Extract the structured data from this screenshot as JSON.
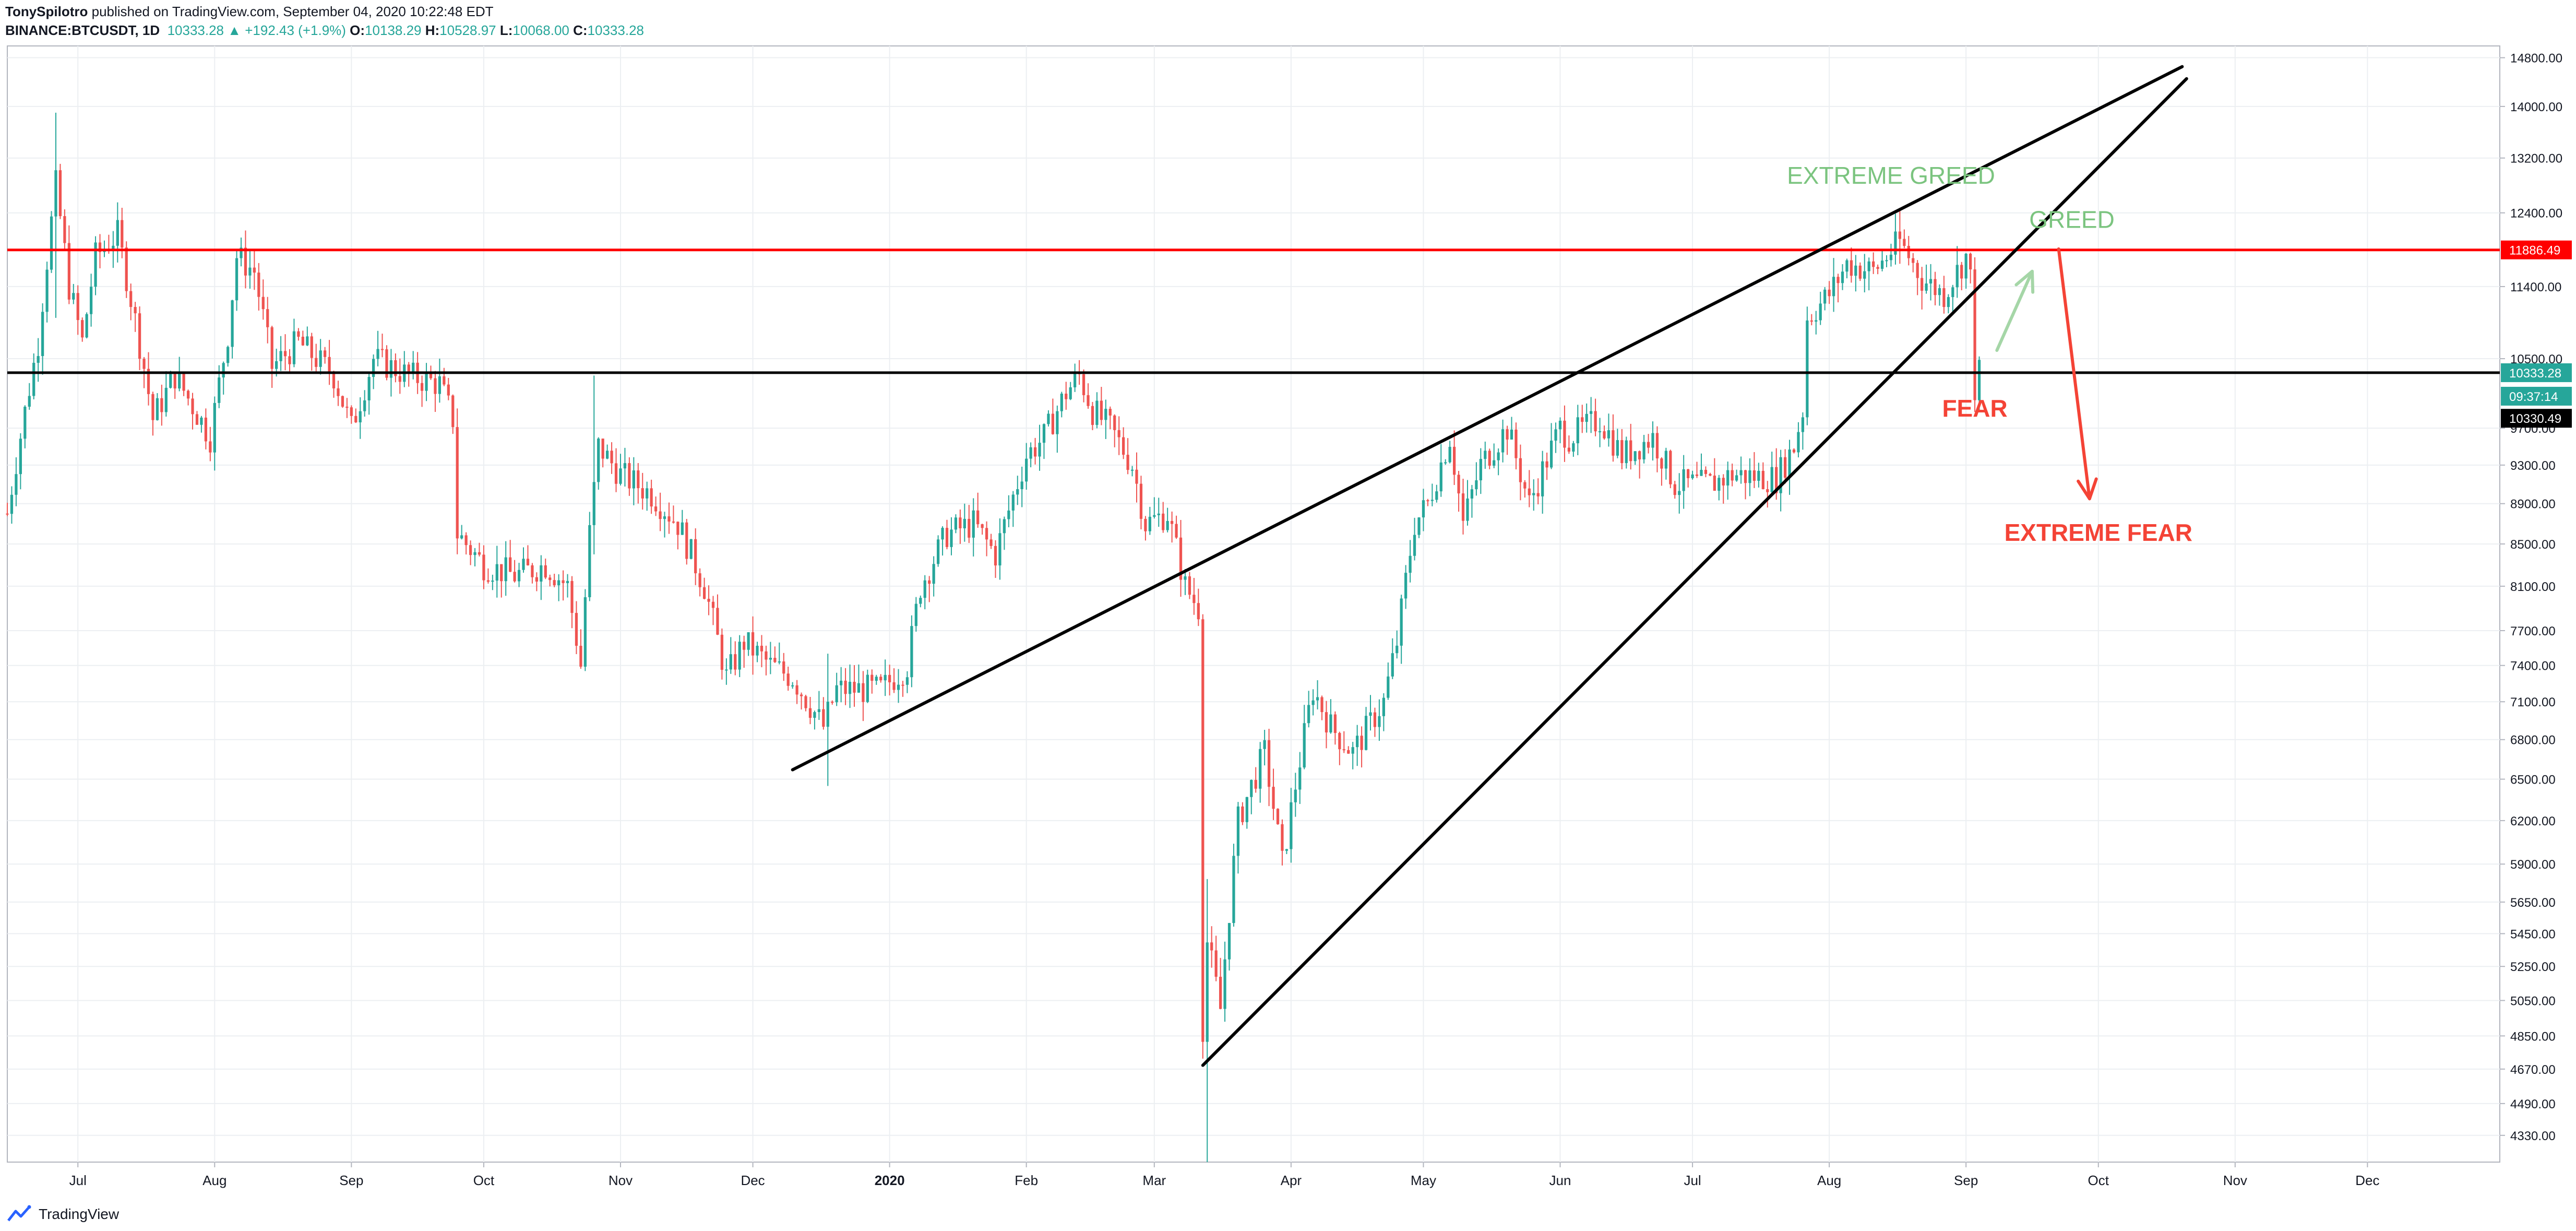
{
  "header": {
    "author": "TonySpilotro",
    "published_text": "published on TradingView.com, September 04, 2020 10:22:48 EDT",
    "symbol": "BINANCE:BTCUSDT, 1D",
    "last": "10333.28",
    "change": "+192.43 (+1.9%)",
    "o_label": "O:",
    "o_value": "10138.29",
    "h_label": "H:",
    "h_value": "10528.97",
    "l_label": "L:",
    "l_value": "10068.00",
    "c_label": "C:",
    "c_value": "10333.28"
  },
  "footer": {
    "brand": "TradingView",
    "logo_icon": "tradingview-logo-icon"
  },
  "colors": {
    "up": "#26a69a",
    "down": "#ef5350",
    "resistance": "#ff0000",
    "support": "#000000",
    "greed": "#7bc47f",
    "fear": "#f44336",
    "grid": "#eceff2"
  },
  "chart_data": {
    "type": "candlestick",
    "y_scale": "log",
    "y_range": [
      4200,
      15000
    ],
    "x_range": [
      "2020-06-15",
      "2021-01-01"
    ],
    "x_range_note": "date axis spans 2019-06-15 to 2020-12-31",
    "x_start": "2019-06-15",
    "x_end": "2020-12-31",
    "y_ticks": [
      "14800.00",
      "14000.00",
      "13200.00",
      "12400.00",
      "11400.00",
      "10500.00",
      "9700.00",
      "9300.00",
      "8900.00",
      "8500.00",
      "8100.00",
      "7700.00",
      "7400.00",
      "7100.00",
      "6800.00",
      "6500.00",
      "6200.00",
      "5900.00",
      "5650.00",
      "5450.00",
      "5250.00",
      "5050.00",
      "4850.00",
      "4670.00",
      "4490.00",
      "4330.00"
    ],
    "x_ticks": [
      {
        "label": "Jul",
        "date": "2019-07-01"
      },
      {
        "label": "Aug",
        "date": "2019-08-01"
      },
      {
        "label": "Sep",
        "date": "2019-09-01"
      },
      {
        "label": "Oct",
        "date": "2019-10-01"
      },
      {
        "label": "Nov",
        "date": "2019-11-01"
      },
      {
        "label": "Dec",
        "date": "2019-12-01"
      },
      {
        "label": "2020",
        "date": "2020-01-01",
        "bold": true
      },
      {
        "label": "Feb",
        "date": "2020-02-01"
      },
      {
        "label": "Mar",
        "date": "2020-03-01"
      },
      {
        "label": "Apr",
        "date": "2020-04-01"
      },
      {
        "label": "May",
        "date": "2020-05-01"
      },
      {
        "label": "Jun",
        "date": "2020-06-01"
      },
      {
        "label": "Jul",
        "date": "2020-07-01"
      },
      {
        "label": "Aug",
        "date": "2020-08-01"
      },
      {
        "label": "Sep",
        "date": "2020-09-01"
      },
      {
        "label": "Oct",
        "date": "2020-10-01"
      },
      {
        "label": "Nov",
        "date": "2020-11-01"
      },
      {
        "label": "Dec",
        "date": "2020-12-01"
      }
    ],
    "price_path": [
      [
        "2019-06-15",
        8800
      ],
      [
        "2019-06-22",
        10700
      ],
      [
        "2019-06-26",
        12800
      ],
      [
        "2019-06-29",
        11400
      ],
      [
        "2019-07-02",
        10700
      ],
      [
        "2019-07-05",
        11800
      ],
      [
        "2019-07-10",
        12100
      ],
      [
        "2019-07-16",
        10400
      ],
      [
        "2019-07-18",
        9800
      ],
      [
        "2019-07-23",
        10300
      ],
      [
        "2019-07-31",
        9600
      ],
      [
        "2019-08-04",
        10800
      ],
      [
        "2019-08-06",
        11800
      ],
      [
        "2019-08-10",
        11600
      ],
      [
        "2019-08-14",
        10400
      ],
      [
        "2019-08-20",
        10700
      ],
      [
        "2019-08-28",
        10300
      ],
      [
        "2019-09-01",
        9700
      ],
      [
        "2019-09-06",
        10500
      ],
      [
        "2019-09-14",
        10300
      ],
      [
        "2019-09-21",
        10200
      ],
      [
        "2019-09-24",
        9800
      ],
      [
        "2019-09-25",
        8600
      ],
      [
        "2019-10-01",
        8300
      ],
      [
        "2019-10-08",
        8200
      ],
      [
        "2019-10-15",
        8300
      ],
      [
        "2019-10-20",
        8100
      ],
      [
        "2019-10-23",
        7400
      ],
      [
        "2019-10-25",
        8600
      ],
      [
        "2019-10-27",
        9500
      ],
      [
        "2019-11-01",
        9200
      ],
      [
        "2019-11-08",
        9000
      ],
      [
        "2019-11-14",
        8700
      ],
      [
        "2019-11-20",
        8100
      ],
      [
        "2019-11-25",
        7300
      ],
      [
        "2019-11-29",
        7600
      ],
      [
        "2019-12-05",
        7400
      ],
      [
        "2019-12-10",
        7300
      ],
      [
        "2019-12-17",
        6900
      ],
      [
        "2019-12-20",
        7200
      ],
      [
        "2019-12-30",
        7200
      ],
      [
        "2020-01-05",
        7400
      ],
      [
        "2020-01-08",
        8100
      ],
      [
        "2020-01-14",
        8600
      ],
      [
        "2020-01-20",
        8700
      ],
      [
        "2020-01-25",
        8400
      ],
      [
        "2020-02-01",
        9400
      ],
      [
        "2020-02-05",
        9600
      ],
      [
        "2020-02-10",
        10100
      ],
      [
        "2020-02-13",
        10300
      ],
      [
        "2020-02-16",
        9900
      ],
      [
        "2020-02-20",
        9700
      ],
      [
        "2020-02-25",
        9300
      ],
      [
        "2020-02-28",
        8700
      ],
      [
        "2020-03-04",
        8800
      ],
      [
        "2020-03-08",
        8100
      ],
      [
        "2020-03-11",
        7900
      ],
      [
        "2020-03-12",
        4900
      ],
      [
        "2020-03-13",
        5400
      ],
      [
        "2020-03-16",
        5000
      ],
      [
        "2020-03-20",
        6200
      ],
      [
        "2020-03-26",
        6700
      ],
      [
        "2020-03-30",
        5900
      ],
      [
        "2020-04-06",
        7200
      ],
      [
        "2020-04-10",
        6900
      ],
      [
        "2020-04-15",
        6700
      ],
      [
        "2020-04-22",
        7100
      ],
      [
        "2020-04-25",
        7600
      ],
      [
        "2020-04-29",
        8700
      ],
      [
        "2020-05-02",
        8900
      ],
      [
        "2020-05-07",
        9600
      ],
      [
        "2020-05-10",
        8700
      ],
      [
        "2020-05-14",
        9300
      ],
      [
        "2020-05-20",
        9700
      ],
      [
        "2020-05-25",
        8900
      ],
      [
        "2020-06-01",
        9700
      ],
      [
        "2020-06-03",
        9600
      ],
      [
        "2020-06-10",
        9800
      ],
      [
        "2020-06-15",
        9400
      ],
      [
        "2020-06-22",
        9600
      ],
      [
        "2020-06-27",
        9100
      ],
      [
        "2020-07-05",
        9100
      ],
      [
        "2020-07-10",
        9200
      ],
      [
        "2020-07-20",
        9160
      ],
      [
        "2020-07-24",
        9500
      ],
      [
        "2020-07-26",
        9900
      ],
      [
        "2020-07-27",
        11000
      ],
      [
        "2020-08-01",
        11300
      ],
      [
        "2020-08-05",
        11700
      ],
      [
        "2020-08-11",
        11600
      ],
      [
        "2020-08-17",
        12000
      ],
      [
        "2020-08-22",
        11500
      ],
      [
        "2020-08-27",
        11300
      ],
      [
        "2020-09-01",
        11800
      ],
      [
        "2020-09-02",
        11500
      ],
      [
        "2020-09-03",
        10150
      ],
      [
        "2020-09-04",
        10333
      ]
    ],
    "spikes": [
      [
        "2019-06-26",
        13900,
        11000
      ],
      [
        "2019-10-26",
        10300,
        8400
      ],
      [
        "2020-03-13",
        5800,
        4200
      ],
      [
        "2020-08-17",
        12470,
        11700
      ],
      [
        "2020-09-03",
        11500,
        10000
      ],
      [
        "2019-12-18",
        7500,
        6450
      ]
    ],
    "horizontal_lines": [
      {
        "name": "resistance",
        "value": 11886.49,
        "label": "11886.49",
        "color": "#ff0000"
      },
      {
        "name": "support",
        "value": 10333.28,
        "label": "10333.28",
        "color": "#000000"
      }
    ],
    "price_tags": [
      {
        "label": "11886.49",
        "value": 11886.49,
        "bg": "#ff0000",
        "fg": "#ffffff"
      },
      {
        "label": "10333.28",
        "value": 10333.28,
        "bg": "#26a69a",
        "fg": "#ffffff"
      },
      {
        "label": "09:37:14",
        "value": 10060,
        "bg": "#26a69a",
        "fg": "#ffffff"
      },
      {
        "label": "10330.49",
        "value": 9810,
        "bg": "#000000",
        "fg": "#ffffff"
      }
    ],
    "trendlines": [
      {
        "name": "wedge-upper-line",
        "from": [
          "2019-12-10",
          6570
        ],
        "to": [
          "2020-10-20",
          14650
        ]
      },
      {
        "name": "wedge-lower-line",
        "from": [
          "2020-03-12",
          4690
        ],
        "to": [
          "2020-10-21",
          14450
        ]
      }
    ],
    "arrows": [
      {
        "name": "greed-arrow",
        "from": [
          "2020-09-08",
          10600
        ],
        "to": [
          "2020-09-16",
          11600
        ],
        "color": "#a5d6a7"
      },
      {
        "name": "extreme-fear-arrow",
        "from": [
          "2020-09-22",
          11900
        ],
        "to": [
          "2020-09-29",
          8950
        ],
        "color": "#f44336"
      }
    ],
    "annotations": [
      {
        "name": "extreme-greed-label",
        "text": "EXTREME GREED",
        "date": "2020-08-15",
        "value": 12820,
        "color": "#7bc47f"
      },
      {
        "name": "greed-label",
        "text": "GREED",
        "date": "2020-09-25",
        "value": 12190,
        "color": "#7bc47f"
      },
      {
        "name": "fear-label",
        "text": "FEAR",
        "date": "2020-09-03",
        "value": 9830,
        "color": "#f44336"
      },
      {
        "name": "extreme-fear-label",
        "text": "EXTREME FEAR",
        "date": "2020-10-01",
        "value": 8530,
        "color": "#f44336"
      }
    ]
  }
}
